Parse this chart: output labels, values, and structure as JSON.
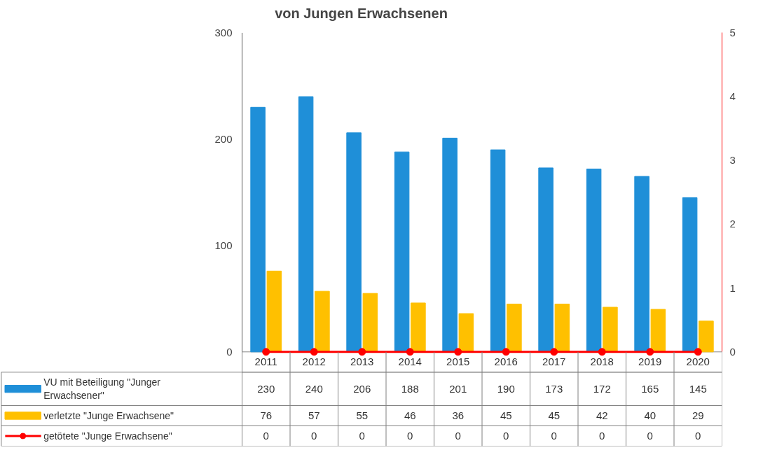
{
  "chart_data": {
    "type": "bar",
    "title": "von Jungen Erwachsenen",
    "categories": [
      "2011",
      "2012",
      "2013",
      "2014",
      "2015",
      "2016",
      "2017",
      "2018",
      "2019",
      "2020"
    ],
    "series": [
      {
        "name": "VU mit Beteiligung \"Junger Erwachsener\"",
        "color": "#1f8fd8",
        "values": [
          230,
          240,
          206,
          188,
          201,
          190,
          173,
          172,
          165,
          145
        ]
      },
      {
        "name": "verletzte \"Junge Erwachsene\"",
        "color": "#ffc000",
        "values": [
          76,
          57,
          55,
          46,
          36,
          45,
          45,
          42,
          40,
          29
        ]
      },
      {
        "name": "getötete  \"Junge Erwachsene\"",
        "color": "#ff0000",
        "type": "line",
        "axis": "y2",
        "marker": "circle",
        "values": [
          0,
          0,
          0,
          0,
          0,
          0,
          0,
          0,
          0,
          0
        ]
      }
    ],
    "ylim": [
      0,
      300
    ],
    "yticks": [
      0,
      100,
      200,
      300
    ],
    "y2lim": [
      0,
      5
    ],
    "y2ticks": [
      0,
      1,
      2,
      3,
      4,
      5
    ],
    "data_labels": true,
    "legend": "bottom",
    "grid": false
  }
}
